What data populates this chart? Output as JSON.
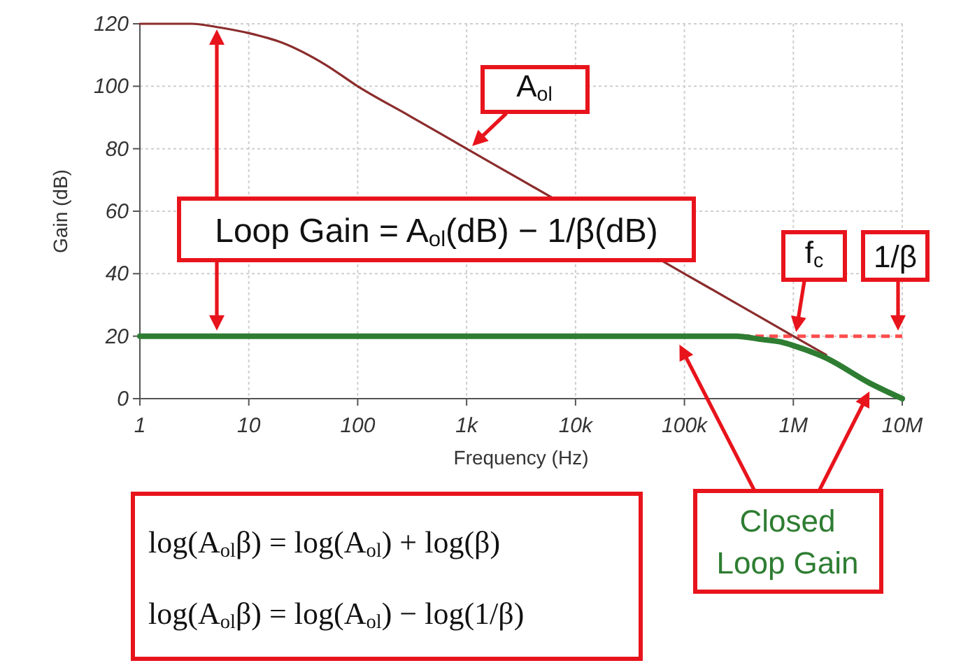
{
  "chart_data": {
    "type": "line",
    "xlabel": "Frequency (Hz)",
    "ylabel": "Gain (dB)",
    "log": "x",
    "grid": true,
    "xlim": [
      1,
      10000000
    ],
    "ylim": [
      0,
      120
    ],
    "xticks": [
      1,
      10,
      100,
      {
        "value": 1000,
        "label": "1k"
      },
      {
        "value": 10000,
        "label": "10k"
      },
      {
        "value": 100000,
        "label": "100k"
      },
      {
        "value": 1000000,
        "label": "1M"
      },
      {
        "value": 10000000,
        "label": "10M"
      }
    ],
    "yticks": [
      0,
      20,
      40,
      60,
      80,
      100,
      120
    ],
    "series": [
      {
        "name": "A$_{ol}$",
        "color": "#8b2c2c",
        "x": [
          1,
          3,
          5,
          10,
          20,
          50,
          100,
          300,
          1000,
          3000,
          100000,
          300000,
          1000000,
          2000000
        ],
        "values": [
          120,
          120,
          119,
          117,
          114,
          107,
          100,
          90.5,
          80,
          70.5,
          40,
          30.5,
          20,
          14
        ]
      },
      {
        "name": "Closed Loop Gain",
        "color": "#2e7d32",
        "x": [
          1,
          10,
          100,
          1000,
          10000,
          100000,
          300000,
          500000,
          800000,
          1000000,
          2000000,
          5000000,
          10000000
        ],
        "values": [
          20,
          20,
          20,
          20,
          20,
          20,
          20,
          19,
          18,
          17,
          13,
          5,
          0
        ]
      }
    ],
    "ref_lines": [
      {
        "axis": "y",
        "value": 20,
        "label": "1/β",
        "color": "#ff4d4d",
        "line_style": "dashed"
      }
    ],
    "annotations": [
      "Loop Gain = A$_{ol}$(dB) − 1/β(dB)",
      {
        "text": "f$_{c}$",
        "x": 1000000,
        "y": 20
      },
      "log(A$_{ol}$β) = log(A$_{ol}$) + log(β)",
      "log(A$_{ol}$β) = log(A$_{ol}$) − log(1/β)"
    ]
  }
}
